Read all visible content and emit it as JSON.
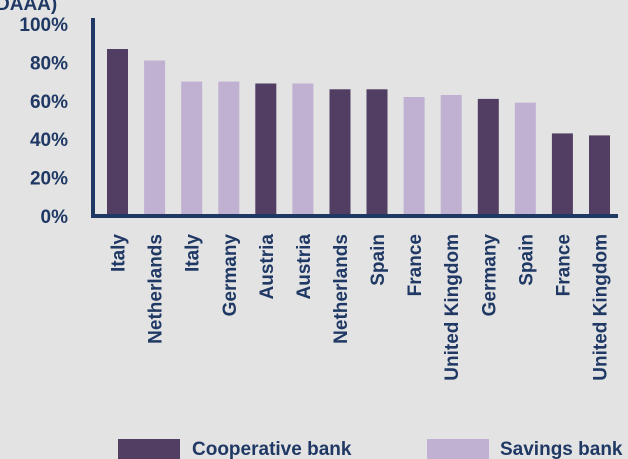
{
  "colors": {
    "cooperative": "#523d63",
    "savings": "#c0b0d2",
    "axis": "#1f3864",
    "text": "#1f3864",
    "background": "#e3e3e3"
  },
  "chart_data": {
    "type": "bar",
    "title": "DAAA)",
    "xlabel": "",
    "ylabel": "",
    "ylim": [
      0,
      100
    ],
    "yticks": [
      "0%",
      "20%",
      "40%",
      "60%",
      "80%",
      "100%"
    ],
    "ytick_values": [
      0,
      20,
      40,
      60,
      80,
      100
    ],
    "grid": false,
    "legend_position": "bottom",
    "categories": [
      "Italy",
      "Netherlands",
      "Italy",
      "Germany",
      "Austria",
      "Austria",
      "Netherlands",
      "Spain",
      "France",
      "United Kingdom",
      "Germany",
      "Spain",
      "France",
      "United Kingdom"
    ],
    "values": [
      87,
      81,
      70,
      70,
      69,
      69,
      66,
      66,
      62,
      63,
      61,
      59,
      43,
      42
    ],
    "bar_series": [
      "Cooperative bank",
      "Savings bank",
      "Savings bank",
      "Savings bank",
      "Cooperative bank",
      "Savings bank",
      "Cooperative bank",
      "Cooperative bank",
      "Savings bank",
      "Savings bank",
      "Cooperative bank",
      "Savings bank",
      "Cooperative bank",
      "Cooperative bank"
    ],
    "series": [
      {
        "name": "Cooperative bank",
        "color": "#523d63"
      },
      {
        "name": "Savings bank",
        "color": "#c0b0d2"
      }
    ]
  }
}
